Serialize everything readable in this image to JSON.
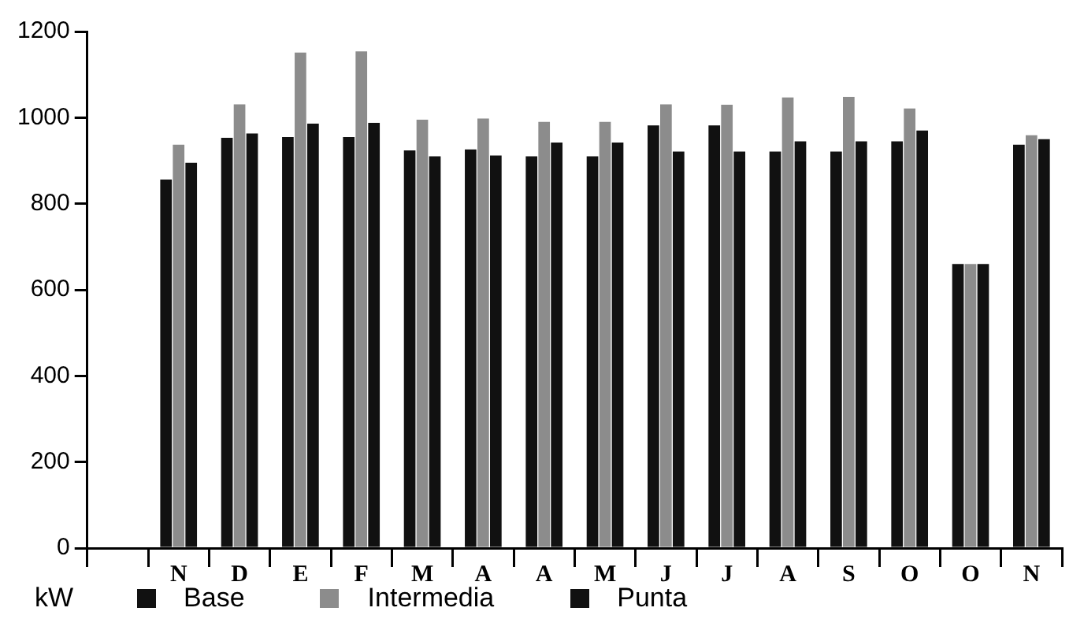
{
  "chart_data": {
    "type": "bar",
    "legend_title": "kW",
    "legend": "bottom",
    "categories": [
      null,
      "N",
      "D",
      "E",
      "F",
      "M",
      "A",
      "A",
      "M",
      "J",
      "J",
      "A",
      "S",
      "O",
      "O",
      "N"
    ],
    "ylim": [
      0,
      1200
    ],
    "yticks": [
      0,
      200,
      400,
      600,
      800,
      1000,
      1200
    ],
    "series": [
      {
        "name": "Base",
        "color": "#111111",
        "values": [
          null,
          856,
          953,
          955,
          955,
          924,
          926,
          910,
          910,
          982,
          982,
          921,
          921,
          945,
          660,
          937
        ]
      },
      {
        "name": "Intermedia",
        "color": "#8c8c8c",
        "values": [
          null,
          937,
          1031,
          1151,
          1154,
          995,
          998,
          990,
          990,
          1031,
          1030,
          1047,
          1048,
          1021,
          660,
          959
        ]
      },
      {
        "name": "Punta",
        "color": "#111111",
        "values": [
          null,
          895,
          963,
          986,
          988,
          910,
          912,
          942,
          942,
          921,
          921,
          945,
          945,
          970,
          660,
          950
        ]
      }
    ]
  }
}
